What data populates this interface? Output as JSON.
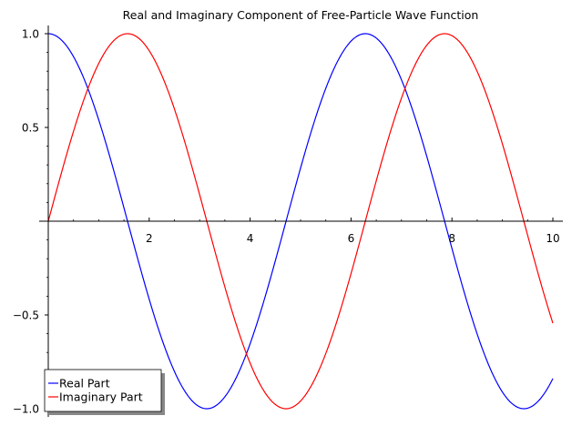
{
  "chart_data": {
    "type": "line",
    "title": "Real and Imaginary Component of Free-Particle Wave Function",
    "xlabel": "",
    "ylabel": "",
    "xlim": [
      0,
      10
    ],
    "ylim": [
      -1.0,
      1.0
    ],
    "x_ticks": [
      2,
      4,
      6,
      8,
      10
    ],
    "x_tick_labels": [
      "2",
      "4",
      "6",
      "8",
      "10"
    ],
    "y_ticks": [
      1.0,
      0.5,
      -0.5,
      -1.0
    ],
    "y_tick_labels": [
      "1.0",
      "0.5",
      "−0.5",
      "−1.0"
    ],
    "grid": false,
    "legend_position": "bottom-left",
    "series": [
      {
        "name": "Real Part",
        "color": "#0000ff",
        "function": "cos(x)",
        "x": [
          0,
          0.5,
          1,
          1.5,
          2,
          2.5,
          3,
          3.5,
          4,
          4.5,
          5,
          5.5,
          6,
          6.5,
          7,
          7.5,
          8,
          8.5,
          9,
          9.5,
          10
        ],
        "values": [
          1.0,
          0.878,
          0.54,
          0.071,
          -0.416,
          -0.801,
          -0.99,
          -0.936,
          -0.654,
          -0.211,
          0.284,
          0.709,
          0.96,
          0.977,
          0.754,
          0.347,
          -0.146,
          -0.602,
          -0.911,
          -0.997,
          -0.839
        ]
      },
      {
        "name": "Imaginary Part",
        "color": "#ff0000",
        "function": "sin(x)",
        "x": [
          0,
          0.5,
          1,
          1.5,
          2,
          2.5,
          3,
          3.5,
          4,
          4.5,
          5,
          5.5,
          6,
          6.5,
          7,
          7.5,
          8,
          8.5,
          9,
          9.5,
          10
        ],
        "values": [
          0.0,
          0.479,
          0.841,
          0.997,
          0.909,
          0.598,
          0.141,
          -0.351,
          -0.757,
          -0.978,
          -0.959,
          -0.706,
          -0.279,
          0.215,
          0.657,
          0.938,
          0.989,
          0.798,
          0.412,
          -0.075,
          -0.544
        ]
      }
    ]
  }
}
